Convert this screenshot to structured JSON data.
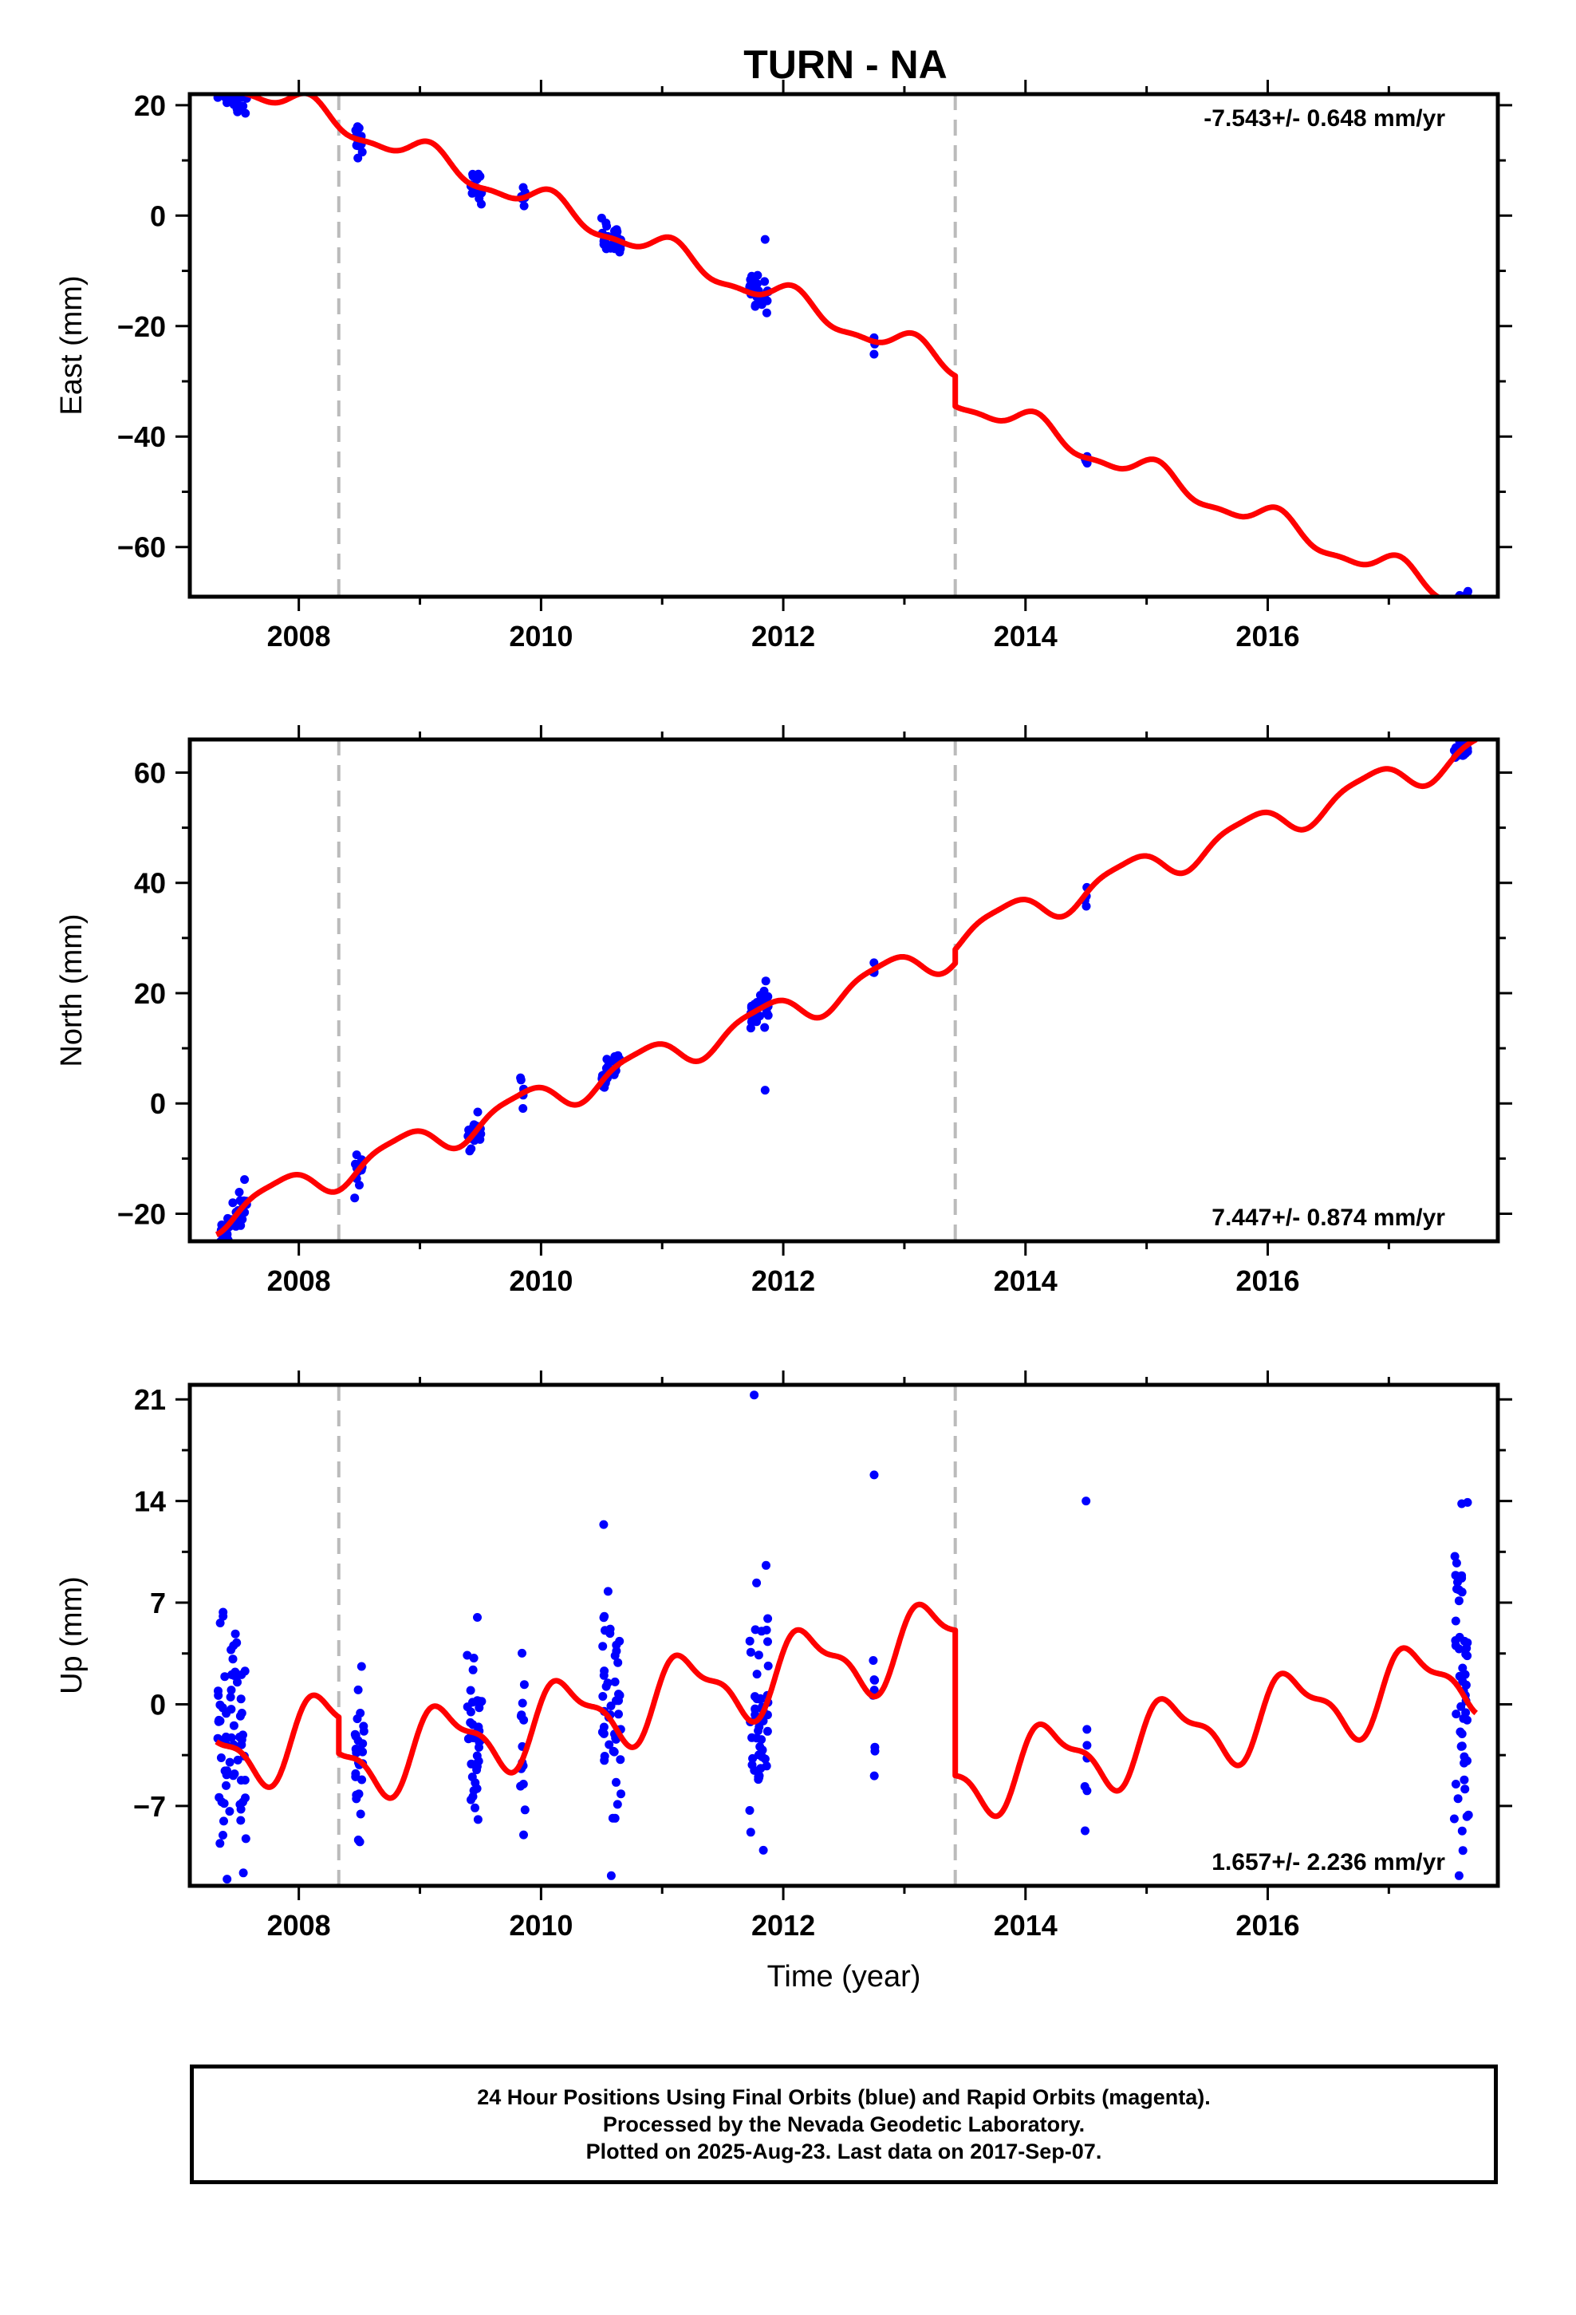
{
  "chart_data": {
    "type": "scatter",
    "title": "TURN - NA",
    "xlabel": "Time (year)",
    "x_ticks": [
      "2008",
      "2010",
      "2012",
      "2014",
      "2016"
    ],
    "xlim": [
      2007.1,
      2017.9
    ],
    "offset_lines_x": [
      2008.33,
      2013.42
    ],
    "colors": {
      "points": "#0000ff",
      "model": "#ff0000",
      "offset_lines": "#bbbbbb"
    },
    "panels": [
      {
        "id": "east",
        "ylabel": "East (mm)",
        "ylim": [
          -69,
          22
        ],
        "y_ticks": [
          20,
          0,
          -20,
          -40,
          -60
        ],
        "y_tick_labels": [
          "20",
          "0",
          "−20",
          "−40",
          "−60"
        ],
        "rate_label": "-7.543+/- 0.648 mm/yr",
        "rate_position": "top-right",
        "model": {
          "base": 25.8,
          "rate": -8.68,
          "amp1": 2.2,
          "phase1": 1.1,
          "amp2": 0.8,
          "phase2": 0.4,
          "jumps": [
            {
              "x": 2008.33,
              "size": 0
            },
            {
              "x": 2013.42,
              "size": -5.5
            }
          ]
        },
        "clusters": [
          {
            "center": 2007.45,
            "spread": 0.12,
            "count": 45,
            "sd": 2.0
          },
          {
            "center": 2008.5,
            "spread": 0.04,
            "count": 15,
            "sd": 1.4
          },
          {
            "center": 2009.45,
            "spread": 0.06,
            "count": 18,
            "sd": 1.3
          },
          {
            "center": 2009.85,
            "spread": 0.02,
            "count": 6,
            "sd": 1.0
          },
          {
            "center": 2010.58,
            "spread": 0.08,
            "count": 28,
            "sd": 1.5
          },
          {
            "center": 2011.8,
            "spread": 0.08,
            "count": 28,
            "sd": 1.6
          },
          {
            "center": 2012.75,
            "spread": 0.01,
            "count": 4,
            "sd": 1.2
          },
          {
            "center": 2014.5,
            "spread": 0.01,
            "count": 4,
            "sd": 1.0
          },
          {
            "center": 2017.6,
            "spread": 0.06,
            "count": 30,
            "sd": 1.5
          }
        ],
        "extra_points": [
          [
            2011.85,
            -4.3
          ]
        ]
      },
      {
        "id": "north",
        "ylabel": "North (mm)",
        "ylim": [
          -25,
          66
        ],
        "y_ticks": [
          60,
          40,
          20,
          0,
          -20
        ],
        "y_tick_labels": [
          "60",
          "40",
          "20",
          "0",
          "−20"
        ],
        "rate_label": "7.447+/- 0.874 mm/yr",
        "rate_position": "bottom-right",
        "model": {
          "base": -20.5,
          "rate": 7.9,
          "amp1": 2.8,
          "phase1": 2.6,
          "amp2": 0.7,
          "phase2": 1.0,
          "jumps": [
            {
              "x": 2008.33,
              "size": 0
            },
            {
              "x": 2013.42,
              "size": 2.5
            }
          ]
        },
        "clusters": [
          {
            "center": 2007.45,
            "spread": 0.12,
            "count": 45,
            "sd": 1.6
          },
          {
            "center": 2008.5,
            "spread": 0.04,
            "count": 15,
            "sd": 1.2
          },
          {
            "center": 2009.45,
            "spread": 0.06,
            "count": 18,
            "sd": 1.6
          },
          {
            "center": 2009.85,
            "spread": 0.02,
            "count": 6,
            "sd": 1.1
          },
          {
            "center": 2010.58,
            "spread": 0.08,
            "count": 28,
            "sd": 1.3
          },
          {
            "center": 2011.8,
            "spread": 0.08,
            "count": 28,
            "sd": 1.6
          },
          {
            "center": 2012.75,
            "spread": 0.01,
            "count": 4,
            "sd": 1.0
          },
          {
            "center": 2014.5,
            "spread": 0.01,
            "count": 4,
            "sd": 0.8
          },
          {
            "center": 2017.6,
            "spread": 0.06,
            "count": 30,
            "sd": 1.2
          }
        ],
        "extra_points": [
          [
            2011.85,
            2.4
          ]
        ]
      },
      {
        "id": "up",
        "ylabel": "Up (mm)",
        "ylim": [
          -12.5,
          22
        ],
        "y_ticks": [
          21,
          14,
          7,
          0,
          -7
        ],
        "y_tick_labels": [
          "21",
          "14",
          "7",
          "0",
          "−7"
        ],
        "rate_label": "1.657+/- 2.236 mm/yr",
        "rate_position": "bottom-right",
        "model": {
          "base": -3.5,
          "rate": 1.75,
          "amp1": 2.4,
          "phase1": 0.3,
          "amp2": 0.9,
          "phase2": 0.9,
          "jumps": [
            {
              "x": 2008.33,
              "size": -2.5
            },
            {
              "x": 2013.42,
              "size": -10.0
            }
          ]
        },
        "clusters": [
          {
            "center": 2007.45,
            "spread": 0.12,
            "count": 70,
            "sd": 3.8
          },
          {
            "center": 2008.5,
            "spread": 0.04,
            "count": 28,
            "sd": 3.0
          },
          {
            "center": 2009.45,
            "spread": 0.06,
            "count": 40,
            "sd": 4.2
          },
          {
            "center": 2009.85,
            "spread": 0.02,
            "count": 14,
            "sd": 3.5
          },
          {
            "center": 2010.58,
            "spread": 0.08,
            "count": 50,
            "sd": 4.2
          },
          {
            "center": 2011.8,
            "spread": 0.08,
            "count": 50,
            "sd": 4.0
          },
          {
            "center": 2012.75,
            "spread": 0.01,
            "count": 8,
            "sd": 3.2
          },
          {
            "center": 2014.5,
            "spread": 0.01,
            "count": 6,
            "sd": 4.0
          },
          {
            "center": 2017.6,
            "spread": 0.06,
            "count": 50,
            "sd": 5.2
          }
        ],
        "extra_points": [
          [
            2011.76,
            21.3
          ],
          [
            2012.75,
            15.8
          ],
          [
            2014.5,
            14.0
          ],
          [
            2017.65,
            13.9
          ],
          [
            2010.58,
            -11.8
          ],
          [
            2017.58,
            -11.8
          ]
        ]
      }
    ]
  },
  "footer": {
    "line1": "24 Hour Positions Using Final Orbits (blue) and Rapid Orbits (magenta).",
    "line2": "Processed by the Nevada Geodetic Laboratory.",
    "line3": "Plotted on 2025-Aug-23. Last data on 2017-Sep-07."
  }
}
